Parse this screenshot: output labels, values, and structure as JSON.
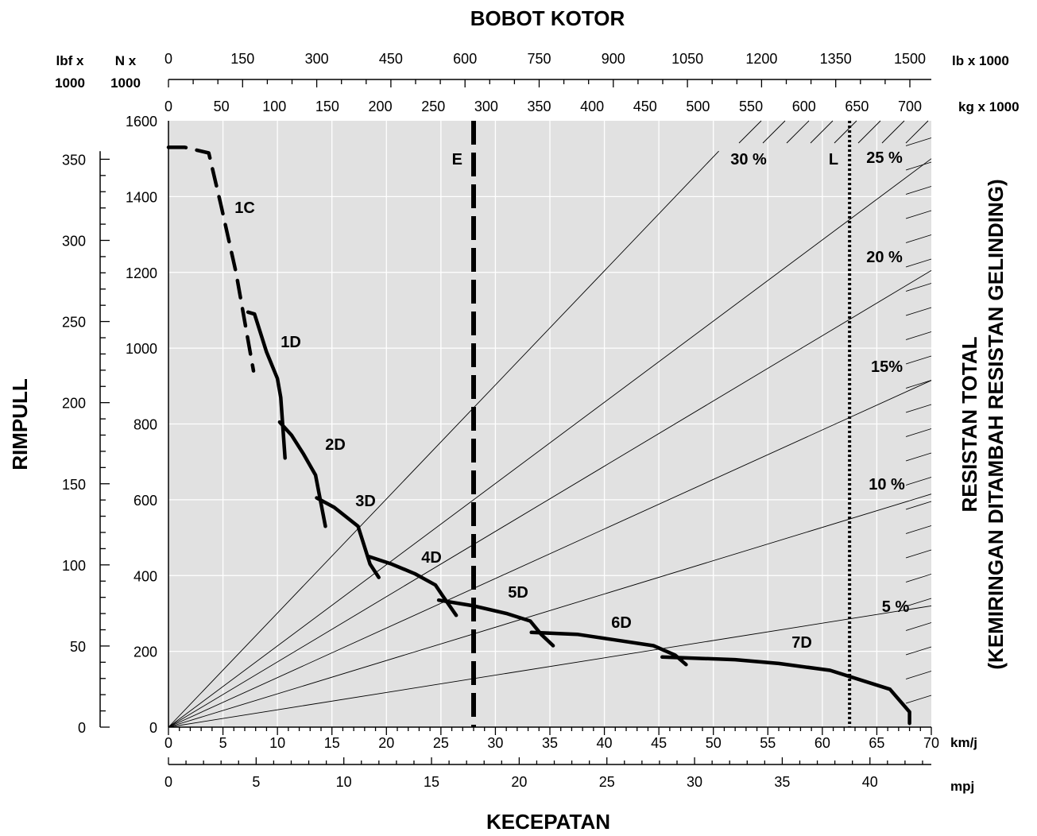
{
  "chart_data": {
    "type": "line",
    "title": "BOBOT KOTOR",
    "xlabel": "KECEPATAN",
    "ylabel": "RIMPULL",
    "y2label": [
      "RESISTAN TOTAL",
      "(KEMIRINGAN DITAMBAH RESISTAN GELINDING)"
    ],
    "x_kmh": {
      "unit": "km/j",
      "range": [
        0,
        70
      ],
      "ticks": [
        0,
        5,
        10,
        15,
        20,
        25,
        30,
        35,
        40,
        45,
        50,
        55,
        60,
        65,
        70
      ]
    },
    "x_mph": {
      "unit": "mpj",
      "range": [
        0,
        43.5
      ],
      "ticks": [
        0,
        5,
        10,
        15,
        20,
        25,
        30,
        35,
        40
      ]
    },
    "y_kn": {
      "unit_lines": [
        "N x",
        "1000"
      ],
      "range": [
        0,
        1600
      ],
      "ticks": [
        0,
        200,
        400,
        600,
        800,
        1000,
        1200,
        1400,
        1600
      ]
    },
    "y_lbf": {
      "unit_lines": [
        "lbf x",
        "1000"
      ],
      "range": [
        0,
        360
      ],
      "ticks": [
        0,
        50,
        100,
        150,
        200,
        250,
        300,
        350
      ]
    },
    "weight_lb": {
      "unit": "lb x 1000",
      "ticks": [
        0,
        150,
        300,
        450,
        600,
        750,
        900,
        1050,
        1200,
        1350,
        1500
      ]
    },
    "weight_kg": {
      "unit": "kg x 1000",
      "ticks": [
        0,
        50,
        100,
        150,
        200,
        250,
        300,
        350,
        400,
        450,
        500,
        550,
        600,
        650,
        700
      ]
    },
    "grade_lines": [
      {
        "label": "5 %",
        "end_y_kn": 320
      },
      {
        "label": "10 %",
        "end_y_kn": 615
      },
      {
        "label": "15%",
        "end_y_kn": 915
      },
      {
        "label": "20  %",
        "end_y_kn": 1205
      },
      {
        "label": "25 %",
        "end_y_kn": 1500
      },
      {
        "label": "30 %",
        "end_y_kn": 1520
      }
    ],
    "markers": [
      {
        "label": "E",
        "x_kmh": 28,
        "style": "dashed"
      },
      {
        "label": "L",
        "x_kmh": 62.5,
        "style": "dotted"
      }
    ],
    "series": [
      {
        "name": "1C",
        "dashed": true,
        "points": [
          [
            0,
            1530
          ],
          [
            1.5,
            1530
          ],
          [
            3.7,
            1515
          ],
          [
            4.8,
            1380
          ],
          [
            6.2,
            1200
          ],
          [
            7.8,
            940
          ]
        ]
      },
      {
        "name": "1D",
        "points": [
          [
            7.3,
            1095
          ],
          [
            7.9,
            1090
          ],
          [
            9,
            990
          ],
          [
            10,
            920
          ],
          [
            10.3,
            870
          ],
          [
            10.7,
            710
          ]
        ]
      },
      {
        "name": "2D",
        "points": [
          [
            10.2,
            805
          ],
          [
            11.3,
            770
          ],
          [
            12.4,
            720
          ],
          [
            13.5,
            665
          ],
          [
            14.4,
            530
          ]
        ]
      },
      {
        "name": "3D",
        "points": [
          [
            13.6,
            605
          ],
          [
            15.2,
            580
          ],
          [
            17.4,
            530
          ],
          [
            18.5,
            430
          ],
          [
            19.3,
            395
          ]
        ]
      },
      {
        "name": "4D",
        "points": [
          [
            18.4,
            450
          ],
          [
            20.5,
            430
          ],
          [
            22.6,
            405
          ],
          [
            24.5,
            375
          ],
          [
            25.2,
            345
          ],
          [
            26.4,
            295
          ]
        ]
      },
      {
        "name": "5D",
        "points": [
          [
            24.8,
            335
          ],
          [
            28,
            320
          ],
          [
            31,
            300
          ],
          [
            33.2,
            280
          ],
          [
            34.2,
            245
          ],
          [
            35.3,
            215
          ]
        ]
      },
      {
        "name": "6D",
        "points": [
          [
            33.3,
            250
          ],
          [
            37.5,
            245
          ],
          [
            41,
            230
          ],
          [
            44.5,
            215
          ],
          [
            46.5,
            190
          ],
          [
            47.5,
            165
          ]
        ]
      },
      {
        "name": "7D",
        "points": [
          [
            45.3,
            185
          ],
          [
            52,
            178
          ],
          [
            56,
            168
          ],
          [
            60.7,
            150
          ],
          [
            66.2,
            100
          ],
          [
            68,
            40
          ],
          [
            68,
            10
          ]
        ]
      }
    ]
  }
}
